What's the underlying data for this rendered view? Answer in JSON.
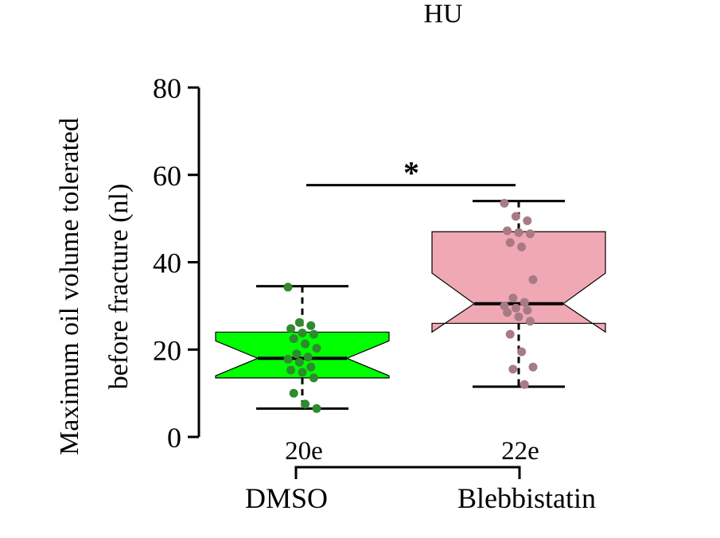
{
  "chart_data": {
    "type": "box",
    "title": "HU",
    "ylabel_line1": "Maximum oil volume tolerated",
    "ylabel_line2": "before fracture (nl)",
    "xlabel": "",
    "ylim": [
      0,
      80
    ],
    "yticks": [
      0,
      20,
      40,
      60,
      80
    ],
    "grid": false,
    "legend": "none",
    "significance": "*",
    "groups": [
      {
        "name": "DMSO",
        "n_label": "20e",
        "color": "#00ff00",
        "point_color": "#2e8b2e",
        "min": 6.5,
        "q1": 13.5,
        "median": 18,
        "q3": 24,
        "max": 34.5,
        "notch_low": 14,
        "notch_high": 22,
        "points": [
          34.3,
          26.2,
          25.5,
          24.8,
          23.8,
          23.5,
          22.5,
          21.3,
          20.3,
          19.0,
          18.3,
          17.8,
          17.1,
          16.0,
          15.3,
          14.8,
          13.5,
          10.0,
          7.5,
          6.5
        ]
      },
      {
        "name": "Blebbistatin",
        "n_label": "22e",
        "color": "#f0a8b4",
        "point_color": "#a67b85",
        "min": 11.5,
        "q1": 26,
        "median": 30.5,
        "q3": 47,
        "max": 54,
        "notch_low": 24,
        "notch_high": 37.5,
        "points": [
          53.5,
          50.5,
          49.5,
          47.2,
          46.8,
          46.5,
          44.5,
          43.5,
          36.0,
          31.8,
          30.8,
          30.0,
          29.5,
          29.0,
          28.5,
          27.5,
          26.5,
          23.5,
          19.5,
          16.0,
          15.5,
          12.0
        ]
      }
    ]
  }
}
